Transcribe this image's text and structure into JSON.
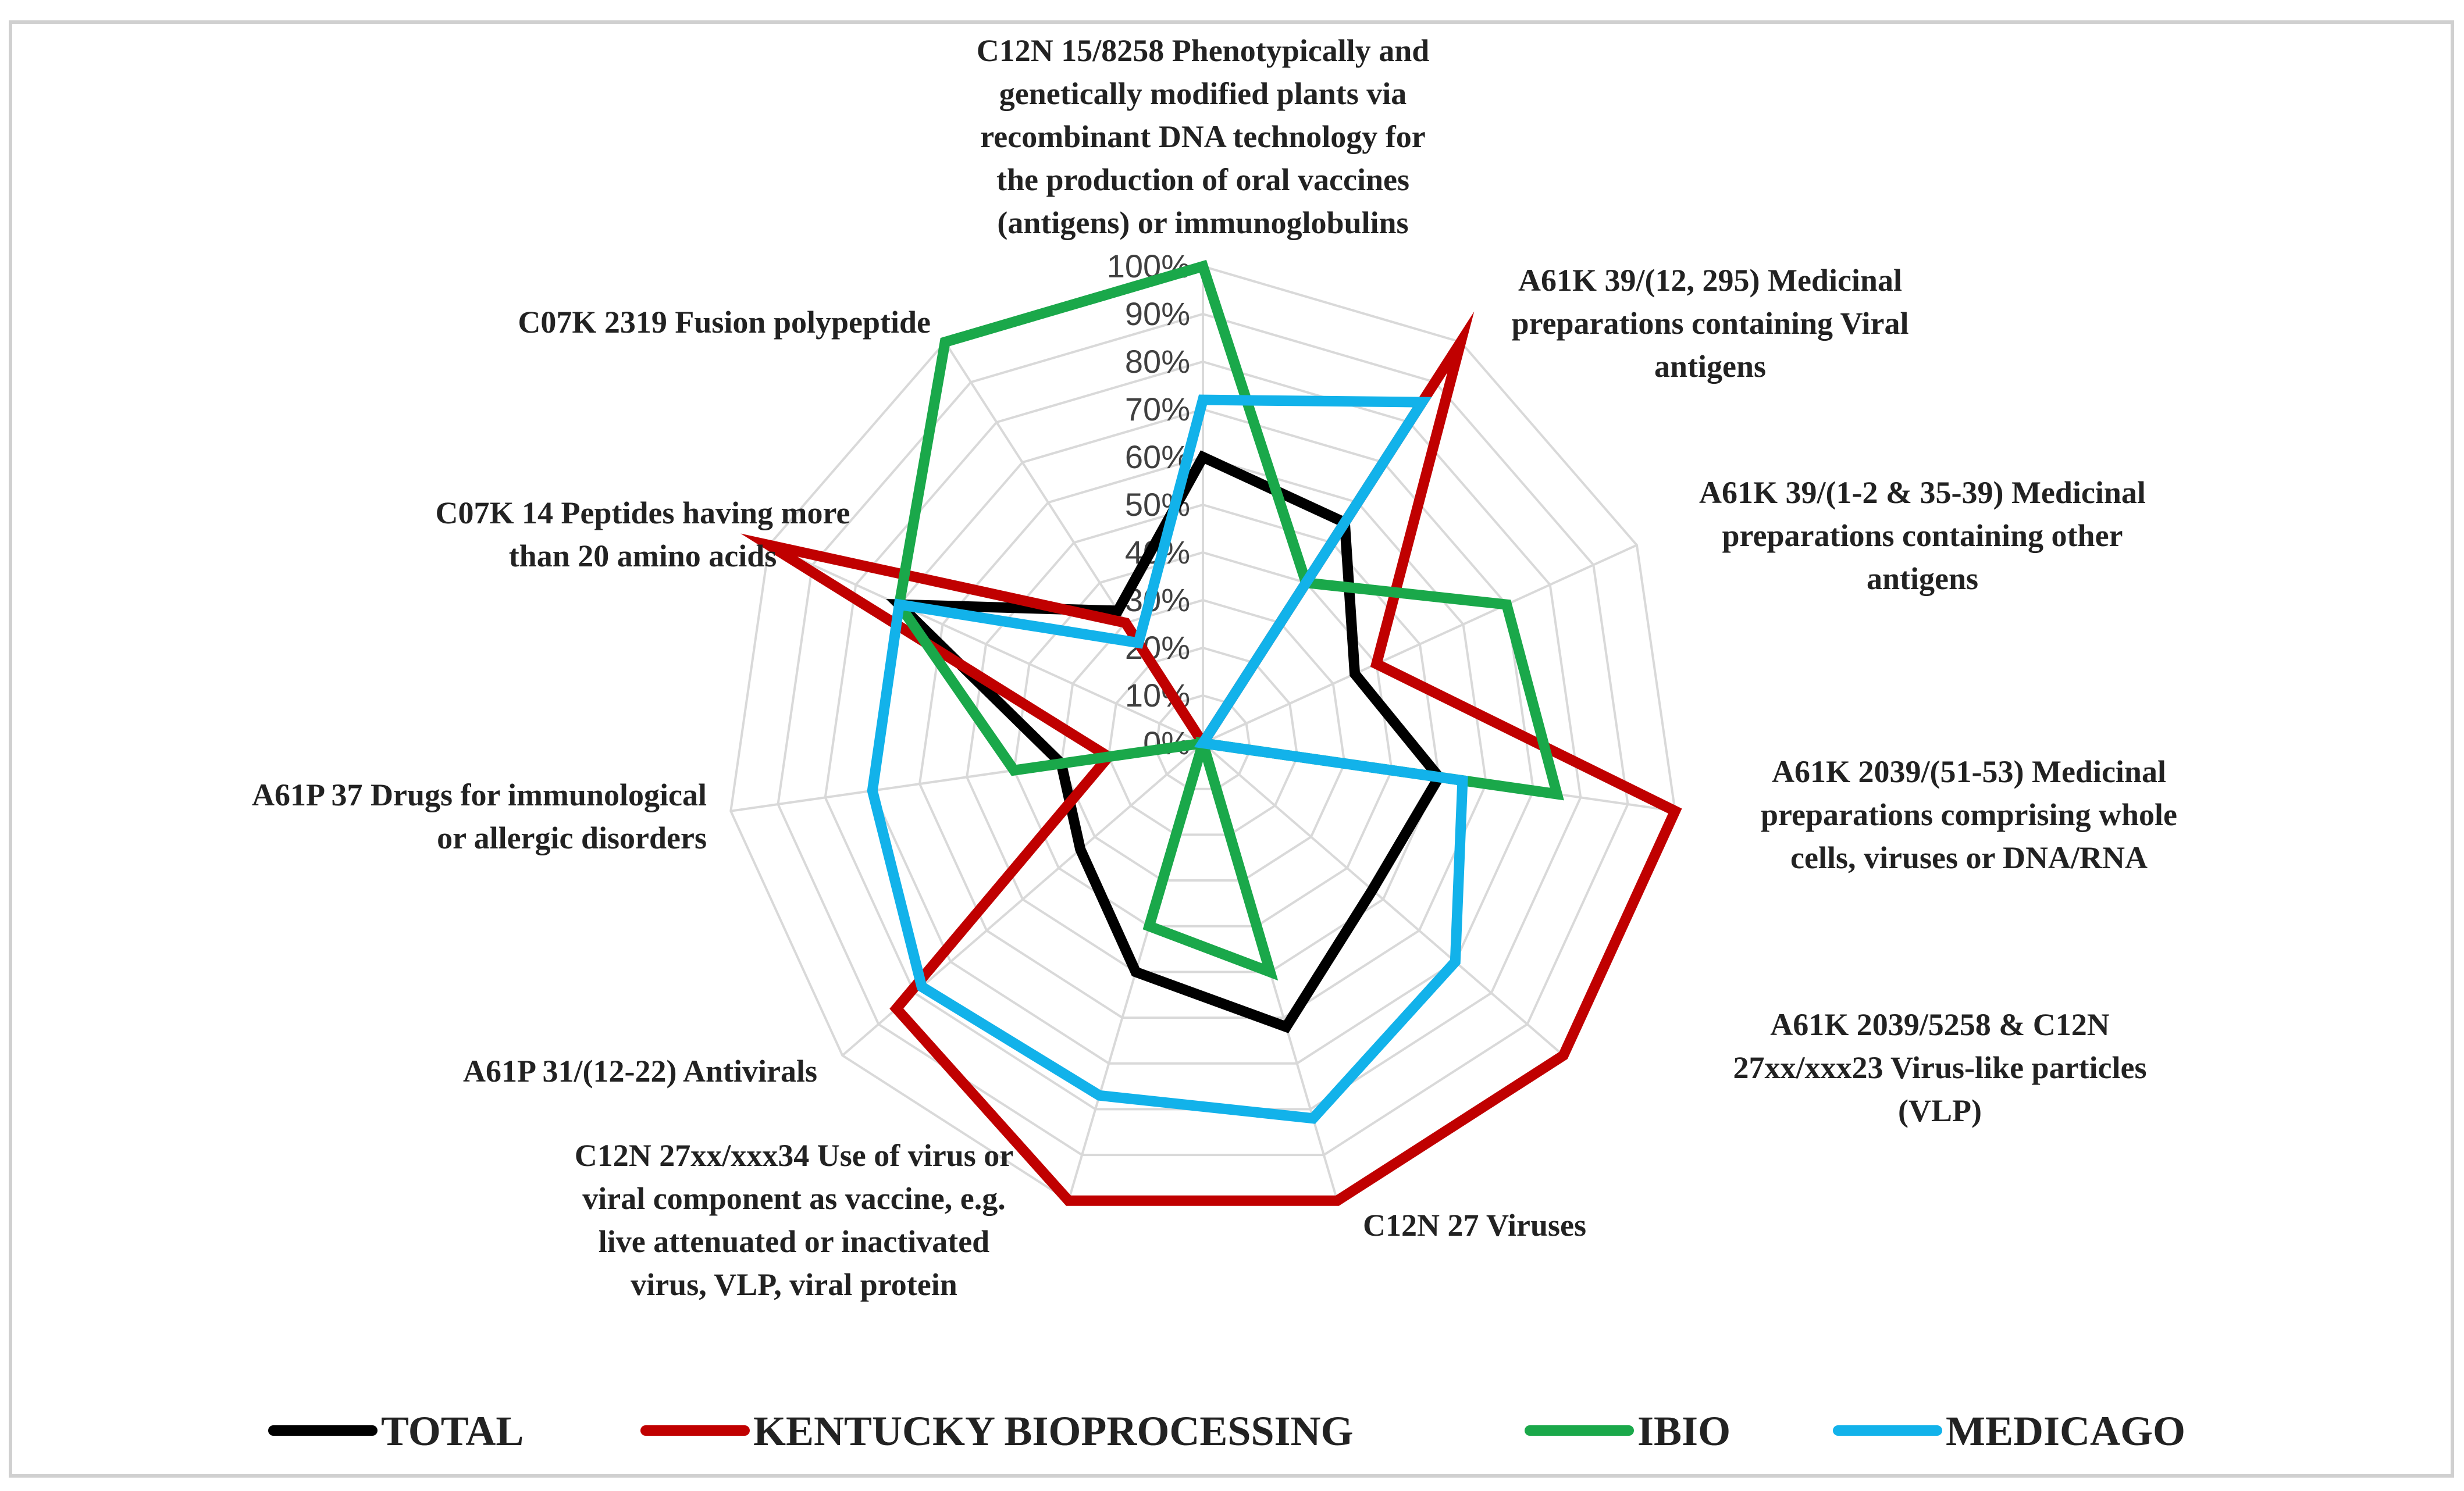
{
  "chart_data": {
    "type": "radar",
    "title": "",
    "axes": [
      [
        "C12N 15/8258 Phenotypically and",
        "genetically modified plants via",
        "recombinant DNA technology for",
        "the production of oral vaccines",
        "(antigens) or immunoglobulins"
      ],
      [
        "A61K 39/(12, 295) Medicinal",
        "preparations containing Viral",
        "antigens"
      ],
      [
        "A61K 39/(1-2 & 35-39) Medicinal",
        "preparations containing other",
        "antigens"
      ],
      [
        "A61K 2039/(51-53) Medicinal",
        "preparations comprising whole",
        "cells, viruses or DNA/RNA"
      ],
      [
        "A61K 2039/5258 & C12N",
        "27xx/xxx23 Virus-like particles",
        "(VLP)"
      ],
      [
        "C12N 27 Viruses"
      ],
      [
        "C12N 27xx/xxx34 Use of virus or",
        "viral component as vaccine, e.g.",
        "live attenuated or inactivated",
        "virus, VLP, viral protein"
      ],
      [
        "A61P 31/(12-22) Antivirals"
      ],
      [
        "A61P 37 Drugs for immunological",
        "or allergic disorders"
      ],
      [
        "C07K 14 Peptides having more",
        "than 20 amino acids"
      ],
      [
        "C07K 2319 Fusion polypeptide"
      ]
    ],
    "ticks": [
      "0%",
      "10%",
      "20%",
      "30%",
      "40%",
      "50%",
      "60%",
      "70%",
      "80%",
      "90%",
      "100%"
    ],
    "range": [
      0,
      100
    ],
    "series": [
      {
        "name": "TOTAL",
        "color": "#000000",
        "values": [
          60,
          55,
          35,
          50,
          47,
          62,
          50,
          34,
          30,
          70,
          33
        ]
      },
      {
        "name": "KENTUCKY BIOPROCESSING",
        "color": "#c00000",
        "values": [
          0,
          100,
          40,
          100,
          100,
          100,
          100,
          85,
          20,
          100,
          30
        ]
      },
      {
        "name": "IBIO",
        "color": "#1aa84a",
        "values": [
          100,
          40,
          70,
          75,
          0,
          50,
          40,
          0,
          40,
          70,
          100
        ]
      },
      {
        "name": "MEDICAGO",
        "color": "#12b2ea",
        "values": [
          72,
          85,
          0,
          55,
          70,
          82,
          77,
          78,
          70,
          70,
          25
        ]
      }
    ],
    "legend": "bottom",
    "grid": true
  }
}
